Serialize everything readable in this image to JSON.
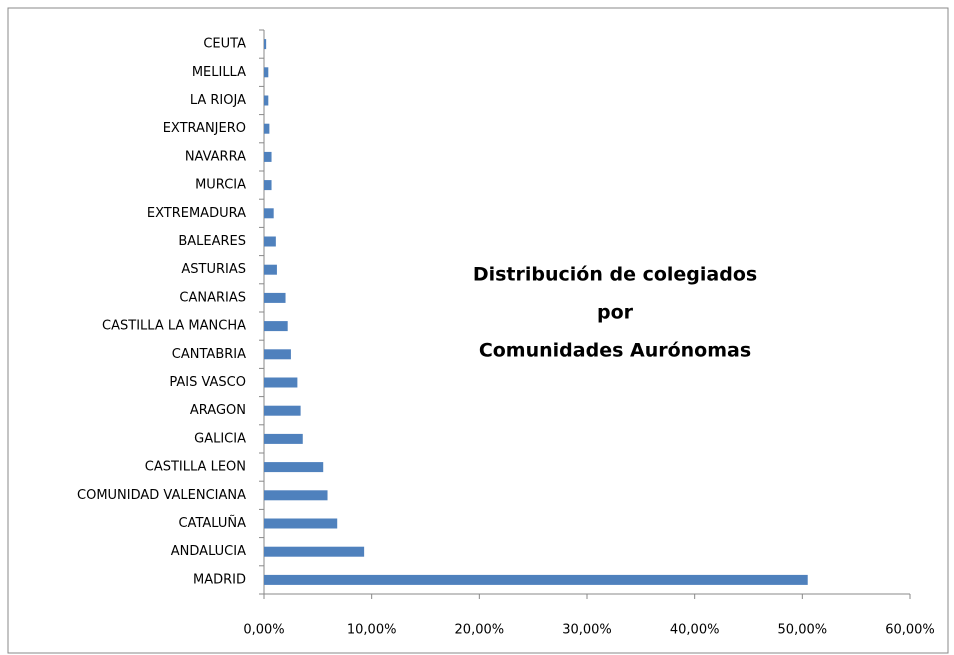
{
  "chart_data": {
    "type": "bar",
    "orientation": "horizontal",
    "title": [
      "Distribución de colegiados",
      "por",
      "Comunidades Aurónomas"
    ],
    "categories": [
      "MADRID",
      "ANDALUCIA",
      "CATALUÑA",
      "COMUNIDAD VALENCIANA",
      "CASTILLA LEON",
      "GALICIA",
      "ARAGON",
      "PAIS VASCO",
      "CANTABRIA",
      "CASTILLA LA MANCHA",
      "CANARIAS",
      "ASTURIAS",
      "BALEARES",
      "EXTREMADURA",
      "MURCIA",
      "NAVARRA",
      "EXTRANJERO",
      "LA RIOJA",
      "MELILLA",
      "CEUTA"
    ],
    "values": [
      50.5,
      9.3,
      6.8,
      5.9,
      5.5,
      3.6,
      3.4,
      3.1,
      2.5,
      2.2,
      2.0,
      1.2,
      1.1,
      0.9,
      0.7,
      0.7,
      0.5,
      0.4,
      0.4,
      0.2
    ],
    "color": "#4f81bd",
    "xlim": [
      0,
      60
    ],
    "xticks": [
      {
        "value": 0,
        "label": "0,00%"
      },
      {
        "value": 10,
        "label": "10,00%"
      },
      {
        "value": 20,
        "label": "20,00%"
      },
      {
        "value": 30,
        "label": "30,00%"
      },
      {
        "value": 40,
        "label": "40,00%"
      },
      {
        "value": 50,
        "label": "50,00%"
      },
      {
        "value": 60,
        "label": "60,00%"
      }
    ],
    "grid": false
  }
}
